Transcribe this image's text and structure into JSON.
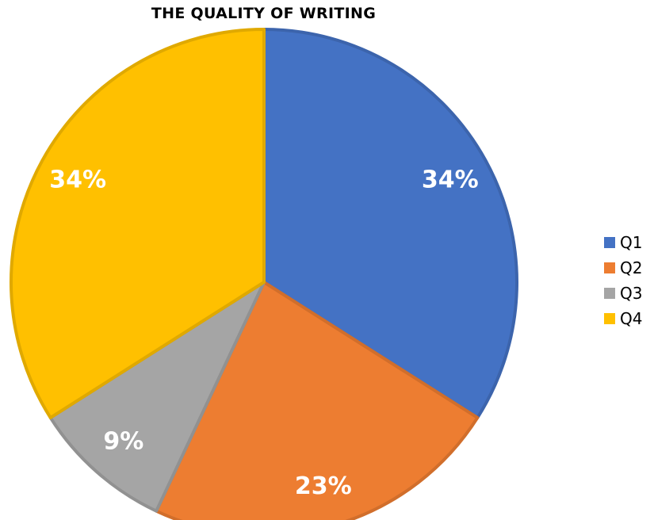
{
  "chart_data": {
    "type": "pie",
    "title": "THE QUALITY OF WRITING",
    "categories": [
      "Q1",
      "Q2",
      "Q3",
      "Q4"
    ],
    "values": [
      34,
      23,
      9,
      34
    ],
    "labels": [
      "34%",
      "23%",
      "9%",
      "34%"
    ],
    "colors": [
      "#4472C4",
      "#ED7D31",
      "#A5A5A5",
      "#FFC000"
    ],
    "legend_position": "right"
  }
}
